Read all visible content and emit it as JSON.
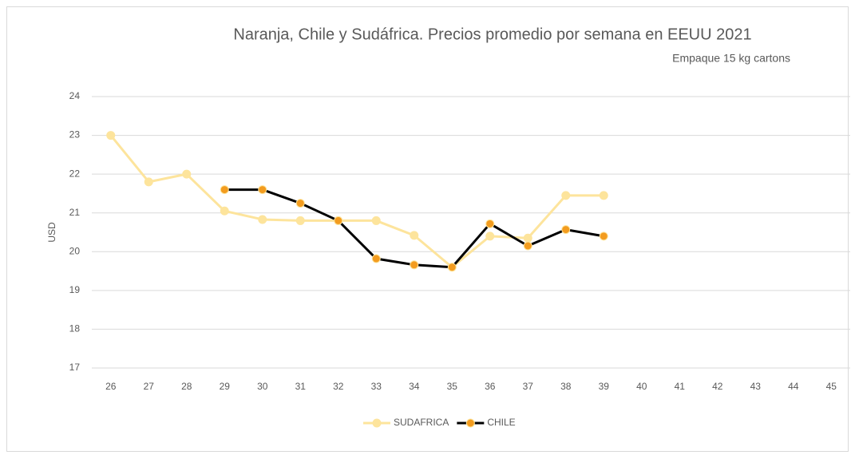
{
  "chart_data": {
    "type": "line",
    "title": "Naranja, Chile y Sudáfrica. Precios promedio por semana en EEUU 2021",
    "subtitle": "Empaque  15 kg cartons",
    "y_label": "USD",
    "categories": [
      "26",
      "27",
      "28",
      "29",
      "30",
      "31",
      "32",
      "33",
      "34",
      "35",
      "36",
      "37",
      "38",
      "39",
      "40",
      "41",
      "42",
      "43",
      "44",
      "45"
    ],
    "series": [
      {
        "name": "SUDAFRICA",
        "color": "#fde49c",
        "marker_color": "#fde49c",
        "values": [
          23.0,
          21.8,
          22.0,
          21.05,
          20.83,
          20.8,
          20.8,
          20.8,
          20.42,
          19.6,
          20.4,
          20.35,
          21.45,
          21.45,
          null,
          null,
          null,
          null,
          null,
          null
        ]
      },
      {
        "name": "CHILE",
        "color": "#000000",
        "marker_color": "#f39c1f",
        "values": [
          null,
          null,
          null,
          21.6,
          21.6,
          21.25,
          20.8,
          19.82,
          19.66,
          19.6,
          20.72,
          20.15,
          20.57,
          20.4,
          null,
          null,
          null,
          null,
          null,
          null
        ]
      }
    ],
    "ylim": [
      17,
      24
    ],
    "yticks": [
      17,
      18,
      19,
      20,
      21,
      22,
      23,
      24
    ],
    "grid": true,
    "legend": "bottom"
  }
}
